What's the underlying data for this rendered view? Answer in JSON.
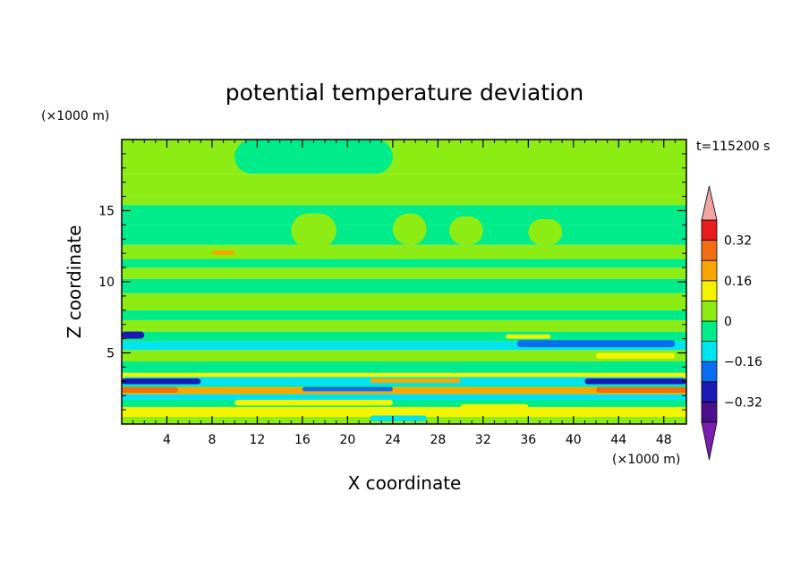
{
  "chart_data": {
    "type": "heatmap",
    "title": "potential temperature deviation",
    "xlabel": "X coordinate",
    "ylabel": "Z coordinate",
    "x_unit": "(×1000 m)",
    "y_unit": "(×1000 m)",
    "time_label": "t=115200 s",
    "xlim": [
      0,
      50
    ],
    "ylim": [
      0,
      20
    ],
    "x_ticks": [
      4,
      8,
      12,
      16,
      20,
      24,
      28,
      32,
      36,
      40,
      44,
      48
    ],
    "y_ticks": [
      5,
      10,
      15
    ],
    "colorbar": {
      "boundaries": [
        -0.4,
        -0.32,
        -0.24,
        -0.16,
        -0.08,
        0,
        0.08,
        0.16,
        0.24,
        0.32,
        0.4
      ],
      "tick_labels": [
        "0.32",
        "0.16",
        "0",
        "−0.16",
        "−0.32"
      ],
      "tick_values": [
        0.32,
        0.16,
        0,
        -0.16,
        -0.32
      ],
      "colors": [
        "#4b0f8c",
        "#1a1ab4",
        "#0a6cf0",
        "#00e4ef",
        "#00ec8a",
        "#8cec14",
        "#f4f400",
        "#f9a700",
        "#f06e10",
        "#e81c1c"
      ],
      "under_color": "#7a1fb0",
      "over_color": "#f2a4a4"
    },
    "bands": [
      {
        "z": [
          0.0,
          0.5
        ],
        "value": 0.0
      },
      {
        "z": [
          0.5,
          1.2
        ],
        "value": 0.1
      },
      {
        "z": [
          1.2,
          1.7
        ],
        "value": -0.05
      },
      {
        "z": [
          1.7,
          2.1
        ],
        "value": -0.12
      },
      {
        "z": [
          2.1,
          2.6
        ],
        "value": 0.2
      },
      {
        "z": [
          2.6,
          2.9
        ],
        "value": -0.06
      },
      {
        "z": [
          2.9,
          3.2
        ],
        "value": 0.04
      },
      {
        "z": [
          3.2,
          3.6
        ],
        "value": 0.1
      },
      {
        "z": [
          3.6,
          4.4
        ],
        "value": -0.05
      },
      {
        "z": [
          4.4,
          5.2
        ],
        "value": 0.05
      },
      {
        "z": [
          5.2,
          5.8
        ],
        "value": -0.12
      },
      {
        "z": [
          5.8,
          6.5
        ],
        "value": -0.04
      },
      {
        "z": [
          6.5,
          7.3
        ],
        "value": 0.05
      },
      {
        "z": [
          7.3,
          8.0
        ],
        "value": -0.04
      },
      {
        "z": [
          8.0,
          9.2
        ],
        "value": 0.04
      },
      {
        "z": [
          9.2,
          10.2
        ],
        "value": -0.04
      },
      {
        "z": [
          10.2,
          11.0
        ],
        "value": 0.05
      },
      {
        "z": [
          11.0,
          11.6
        ],
        "value": -0.03
      },
      {
        "z": [
          11.6,
          12.6
        ],
        "value": 0.04
      },
      {
        "z": [
          12.6,
          14.0
        ],
        "value": -0.03
      },
      {
        "z": [
          14.0,
          15.4
        ],
        "value": -0.04
      },
      {
        "z": [
          15.4,
          16.0
        ],
        "value": 0.04
      },
      {
        "z": [
          16.0,
          17.6
        ],
        "value": 0.05
      },
      {
        "z": [
          17.6,
          20.0
        ],
        "value": 0.04
      }
    ],
    "features": [
      {
        "x": [
          0,
          50
        ],
        "z": [
          2.7,
          3.3
        ],
        "value": -0.14
      },
      {
        "x": [
          0,
          7
        ],
        "z": [
          2.8,
          3.2
        ],
        "value": -0.3
      },
      {
        "x": [
          41,
          50
        ],
        "z": [
          2.8,
          3.2
        ],
        "value": -0.3
      },
      {
        "x": [
          0,
          5
        ],
        "z": [
          2.2,
          2.6
        ],
        "value": 0.28
      },
      {
        "x": [
          42,
          50
        ],
        "z": [
          2.2,
          2.6
        ],
        "value": 0.25
      },
      {
        "x": [
          16,
          24
        ],
        "z": [
          2.3,
          2.6
        ],
        "value": -0.22
      },
      {
        "x": [
          22,
          30
        ],
        "z": [
          2.9,
          3.2
        ],
        "value": 0.22
      },
      {
        "x": [
          10,
          24
        ],
        "z": [
          1.3,
          1.7
        ],
        "value": 0.12
      },
      {
        "x": [
          30,
          36
        ],
        "z": [
          1.0,
          1.4
        ],
        "value": 0.12
      },
      {
        "x": [
          35,
          49
        ],
        "z": [
          5.4,
          5.9
        ],
        "value": -0.18
      },
      {
        "x": [
          34,
          38
        ],
        "z": [
          6.0,
          6.3
        ],
        "value": 0.12
      },
      {
        "x": [
          42,
          49
        ],
        "z": [
          4.6,
          5.0
        ],
        "value": 0.12
      },
      {
        "x": [
          8,
          10
        ],
        "z": [
          11.9,
          12.2
        ],
        "value": 0.2
      },
      {
        "x": [
          0,
          2
        ],
        "z": [
          6.0,
          6.5
        ],
        "value": -0.25
      },
      {
        "x": [
          22,
          27
        ],
        "z": [
          0.2,
          0.6
        ],
        "value": -0.1
      },
      {
        "x": [
          15,
          19
        ],
        "z": [
          12.4,
          14.8
        ],
        "value": 0.05
      },
      {
        "x": [
          24,
          27
        ],
        "z": [
          12.6,
          14.8
        ],
        "value": 0.05
      },
      {
        "x": [
          29,
          32
        ],
        "z": [
          12.6,
          14.6
        ],
        "value": 0.05
      },
      {
        "x": [
          36,
          39
        ],
        "z": [
          12.6,
          14.4
        ],
        "value": 0.05
      },
      {
        "x": [
          10,
          24
        ],
        "z": [
          17.6,
          20.0
        ],
        "value": -0.04
      },
      {
        "x": [
          0,
          1
        ],
        "z": [
          17.6,
          20.0
        ],
        "value": 0.04
      }
    ]
  }
}
